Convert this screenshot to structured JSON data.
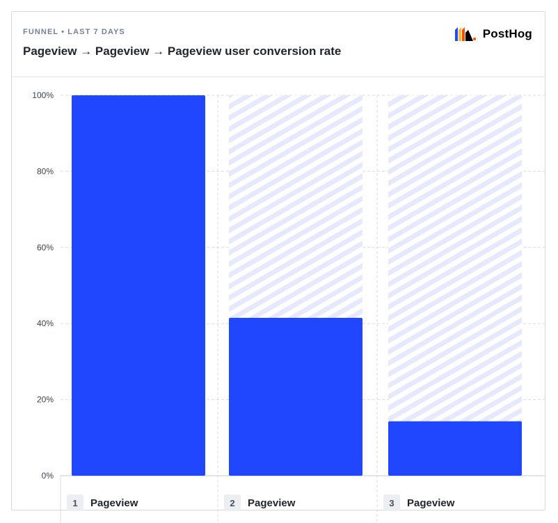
{
  "header": {
    "subtitle": "FUNNEL • LAST 7 DAYS",
    "title": "Pageview → Pageview → Pageview user conversion rate",
    "logo_text": "PostHog"
  },
  "colors": {
    "bar": "#2047fe",
    "bar_bg_stripe": "#e6e9fd",
    "grid": "#d9dbe1",
    "axis_text": "#3b3f4c"
  },
  "chart_data": {
    "type": "bar",
    "categories": [
      "Pageview",
      "Pageview",
      "Pageview"
    ],
    "values": [
      100,
      41.5,
      14.3
    ],
    "ylim": [
      0,
      100
    ],
    "y_ticks": [
      "0%",
      "20%",
      "40%",
      "60%",
      "80%",
      "100%"
    ],
    "grid": true
  },
  "steps": [
    {
      "number": "1",
      "name": "Pageview"
    },
    {
      "number": "2",
      "name": "Pageview"
    },
    {
      "number": "3",
      "name": "Pageview"
    }
  ]
}
